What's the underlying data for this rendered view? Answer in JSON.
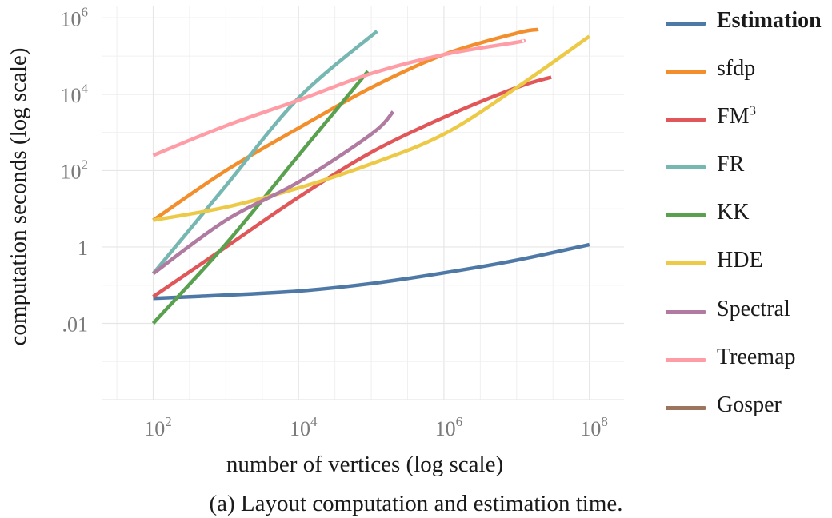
{
  "chart_data": {
    "type": "line",
    "xlabel": "number of vertices (log scale)",
    "ylabel": "computation seconds (log scale)",
    "x_scale": "log",
    "y_scale": "log",
    "xlim": [
      20,
      300000000
    ],
    "ylim": [
      0.0001,
      2000000
    ],
    "grid": true,
    "legend_position": "right",
    "x_ticks": [
      {
        "value": 100,
        "base": "10",
        "exp": "2"
      },
      {
        "value": 10000,
        "base": "10",
        "exp": "4"
      },
      {
        "value": 1000000,
        "base": "10",
        "exp": "6"
      },
      {
        "value": 100000000,
        "base": "10",
        "exp": "8"
      }
    ],
    "y_ticks": [
      {
        "value": 0.01,
        "base": ".01",
        "exp": ""
      },
      {
        "value": 1,
        "base": "1",
        "exp": ""
      },
      {
        "value": 100,
        "base": "10",
        "exp": "2"
      },
      {
        "value": 10000,
        "base": "10",
        "exp": "4"
      },
      {
        "value": 1000000,
        "base": "10",
        "exp": "6"
      }
    ],
    "series": [
      {
        "name": "Estimation",
        "color": "#4e79a7",
        "bold": true,
        "x": [
          100,
          1000,
          10000,
          100000,
          1000000,
          10000000,
          100000000
        ],
        "y": [
          0.045,
          0.055,
          0.07,
          0.11,
          0.21,
          0.45,
          1.15
        ]
      },
      {
        "name": "sfdp",
        "color": "#f28e2b",
        "x": [
          100,
          1000,
          10000,
          100000,
          1000000,
          10000000,
          20000000
        ],
        "y": [
          5,
          100,
          1300,
          15000,
          110000,
          400000,
          500000
        ]
      },
      {
        "name": "FM",
        "name_sup": "3",
        "color": "#e15759",
        "x": [
          100,
          1000,
          10000,
          100000,
          1000000,
          10000000,
          30000000
        ],
        "y": [
          0.05,
          1,
          20,
          300,
          2500,
          15000,
          28000
        ]
      },
      {
        "name": "FR",
        "color": "#76b7b2",
        "x": [
          100,
          1000,
          10000,
          120000
        ],
        "y": [
          0.2,
          40,
          8000,
          450000
        ]
      },
      {
        "name": "KK",
        "color": "#59a14f",
        "x": [
          100,
          1000,
          10000,
          90000
        ],
        "y": [
          0.01,
          1.2,
          250,
          40000
        ]
      },
      {
        "name": "HDE",
        "color": "#edc948",
        "x": [
          100,
          1000,
          10000,
          100000,
          1000000,
          10000000,
          100000000
        ],
        "y": [
          5,
          11,
          35,
          150,
          900,
          15000,
          330000
        ]
      },
      {
        "name": "Spectral",
        "color": "#b07aa1",
        "x": [
          100,
          1000,
          10000,
          100000,
          200000
        ],
        "y": [
          0.2,
          5,
          50,
          900,
          3500
        ]
      },
      {
        "name": "Treemap",
        "color": "#ff9da7",
        "x": [
          100,
          1000,
          10000,
          100000,
          1000000,
          10000000,
          12000000
        ],
        "y": [
          250,
          1500,
          7000,
          35000,
          110000,
          230000,
          250000
        ]
      },
      {
        "name": "Gosper",
        "color": "#9c755f",
        "x": [],
        "y": []
      }
    ]
  },
  "caption": "(a) Layout computation and estimation time."
}
